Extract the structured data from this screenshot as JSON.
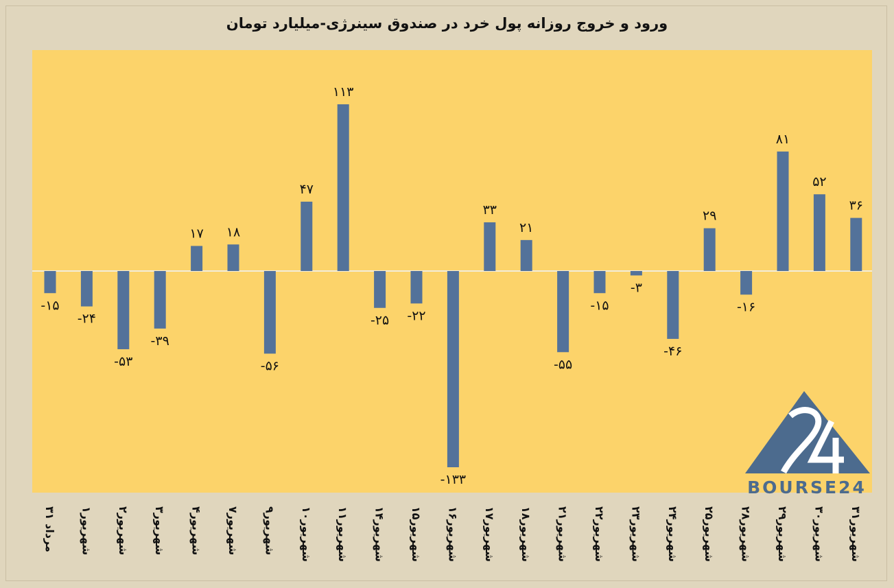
{
  "chart_data": {
    "type": "bar",
    "title": "ورود و خروج روزانه پول خرد در صندوق سینرژی-میلیارد تومان",
    "categories": [
      "۳۱ مرداد",
      "۱شهریور",
      "۲شهریور",
      "۳شهریور",
      "۴شهریور",
      "۷شهریور",
      "۹شهریور",
      "۱۰شهریور",
      "۱۱شهریور",
      "۱۴شهریور",
      "۱۵شهریور",
      "۱۶شهریور",
      "۱۷شهریور",
      "۱۸شهریور",
      "۲۱شهریور",
      "۲۲شهریور",
      "۲۳شهریور",
      "۲۴شهریور",
      "۲۵شهریور",
      "۲۸شهریور",
      "۲۹شهریور",
      "۳۰شهریور",
      "۳۱شهریور"
    ],
    "values": [
      -15,
      -24,
      -53,
      -39,
      17,
      18,
      -56,
      47,
      113,
      -25,
      -22,
      -133,
      33,
      21,
      -55,
      -15,
      -3,
      -46,
      29,
      -16,
      81,
      52,
      36
    ],
    "value_labels": [
      "-۱۵",
      "-۲۴",
      "-۵۳",
      "-۳۹",
      "۱۷",
      "۱۸",
      "-۵۶",
      "۴۷",
      "۱۱۳",
      "-۲۵",
      "-۲۲",
      "-۱۳۳",
      "۳۳",
      "۲۱",
      "-۵۵",
      "-۱۵",
      "-۳",
      "-۴۶",
      "۲۹",
      "-۱۶",
      "۸۱",
      "۵۲",
      "۳۶"
    ],
    "ylim": [
      -150,
      150
    ],
    "grid": false,
    "legend": "none",
    "colors": {
      "bar": "#53729a",
      "plot_bg": "#fcd36a",
      "page_bg": "#e0d6bd",
      "zero_line": "#f2ecd9"
    }
  },
  "logo": {
    "text": "BOURSE24",
    "mark": "24",
    "color": "#4c6b8e"
  }
}
